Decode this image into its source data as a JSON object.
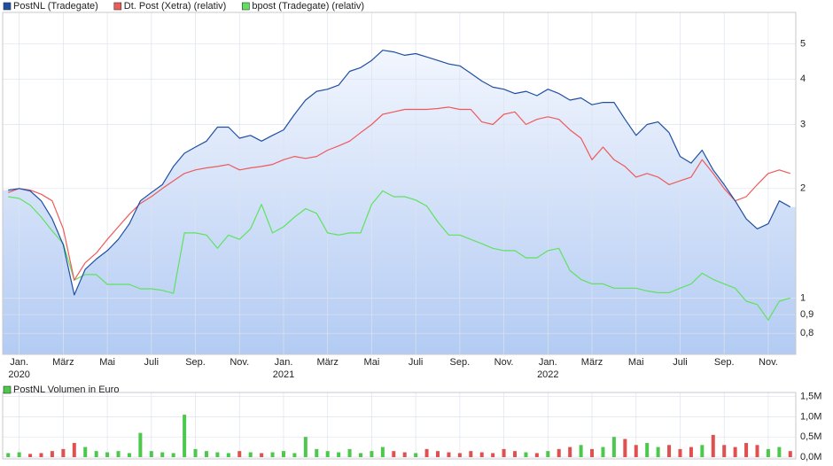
{
  "chart_data": [
    {
      "type": "line",
      "yscale": "log",
      "grid": true,
      "area_under_first_series": true,
      "categories": [
        null,
        "Jan.",
        null,
        null,
        null,
        "März",
        null,
        null,
        null,
        "Mai",
        null,
        null,
        null,
        "Juli",
        null,
        null,
        null,
        "Sep.",
        null,
        null,
        null,
        "Nov.",
        null,
        null,
        null,
        "Jan.",
        null,
        null,
        null,
        "März",
        null,
        null,
        null,
        "Mai",
        null,
        null,
        null,
        "Juli",
        null,
        null,
        null,
        "Sep.",
        null,
        null,
        null,
        "Nov.",
        null,
        null,
        null,
        "Jan.",
        null,
        null,
        null,
        "März",
        null,
        null,
        null,
        "Mai",
        null,
        null,
        null,
        "Juli",
        null,
        null,
        null,
        "Sep.",
        null,
        null,
        null,
        "Nov.",
        null,
        null
      ],
      "category_years": [
        null,
        "2020",
        null,
        null,
        null,
        null,
        null,
        null,
        null,
        null,
        null,
        null,
        null,
        null,
        null,
        null,
        null,
        null,
        null,
        null,
        null,
        null,
        null,
        null,
        null,
        "2021",
        null,
        null,
        null,
        null,
        null,
        null,
        null,
        null,
        null,
        null,
        null,
        null,
        null,
        null,
        null,
        null,
        null,
        null,
        null,
        null,
        null,
        null,
        null,
        "2022",
        null,
        null,
        null,
        null,
        null,
        null,
        null,
        null,
        null,
        null,
        null,
        null,
        null,
        null,
        null,
        null,
        null,
        null,
        null,
        null,
        null,
        null
      ],
      "ylim": [
        0.7,
        6.1
      ],
      "yticks": [
        {
          "value": 0.8,
          "label": "0,8"
        },
        {
          "value": 0.9,
          "label": "0,9"
        },
        1,
        2,
        3,
        4,
        5
      ],
      "series": [
        {
          "name": "PostNL (Tradegate)",
          "color": "#1f4fa3",
          "values": [
            1.98,
            2.0,
            1.97,
            1.85,
            1.65,
            1.4,
            1.02,
            1.2,
            1.28,
            1.35,
            1.45,
            1.6,
            1.85,
            1.95,
            2.05,
            2.3,
            2.5,
            2.6,
            2.7,
            2.95,
            2.95,
            2.75,
            2.8,
            2.7,
            2.8,
            2.9,
            3.2,
            3.5,
            3.7,
            3.75,
            3.85,
            4.2,
            4.3,
            4.5,
            4.8,
            4.75,
            4.65,
            4.7,
            4.6,
            4.5,
            4.4,
            4.35,
            4.15,
            3.95,
            3.8,
            3.75,
            3.65,
            3.7,
            3.6,
            3.75,
            3.65,
            3.5,
            3.55,
            3.4,
            3.45,
            3.45,
            3.1,
            2.8,
            3.0,
            3.05,
            2.85,
            2.45,
            2.35,
            2.55,
            2.25,
            2.05,
            1.85,
            1.65,
            1.55,
            1.6,
            1.85,
            1.78
          ]
        },
        {
          "name": "Dt. Post (Xetra) (relativ)",
          "color": "#ee5a5a",
          "values": [
            1.95,
            2.0,
            1.98,
            1.93,
            1.85,
            1.55,
            1.12,
            1.25,
            1.33,
            1.45,
            1.57,
            1.7,
            1.82,
            1.9,
            2.0,
            2.1,
            2.2,
            2.25,
            2.28,
            2.3,
            2.33,
            2.25,
            2.28,
            2.3,
            2.33,
            2.4,
            2.45,
            2.42,
            2.45,
            2.55,
            2.62,
            2.7,
            2.85,
            3.0,
            3.2,
            3.25,
            3.3,
            3.3,
            3.3,
            3.32,
            3.35,
            3.3,
            3.3,
            3.05,
            3.0,
            3.2,
            3.25,
            3.0,
            3.1,
            3.15,
            3.1,
            2.9,
            2.75,
            2.4,
            2.6,
            2.4,
            2.3,
            2.15,
            2.2,
            2.15,
            2.05,
            2.1,
            2.15,
            2.4,
            2.2,
            2.0,
            1.85,
            1.9,
            2.05,
            2.2,
            2.25,
            2.2
          ]
        },
        {
          "name": "bpost (Tradegate) (relativ)",
          "color": "#5ee25e",
          "values": [
            1.9,
            1.88,
            1.8,
            1.67,
            1.53,
            1.41,
            1.12,
            1.16,
            1.16,
            1.09,
            1.09,
            1.09,
            1.06,
            1.06,
            1.05,
            1.03,
            1.51,
            1.51,
            1.49,
            1.37,
            1.49,
            1.45,
            1.55,
            1.81,
            1.51,
            1.57,
            1.67,
            1.76,
            1.71,
            1.51,
            1.49,
            1.51,
            1.51,
            1.81,
            1.97,
            1.9,
            1.9,
            1.86,
            1.79,
            1.62,
            1.49,
            1.49,
            1.45,
            1.41,
            1.37,
            1.35,
            1.35,
            1.29,
            1.29,
            1.35,
            1.37,
            1.19,
            1.125,
            1.094,
            1.094,
            1.064,
            1.064,
            1.064,
            1.046,
            1.034,
            1.034,
            1.064,
            1.094,
            1.17,
            1.125,
            1.094,
            1.064,
            0.98,
            0.96,
            0.87,
            0.98,
            1.0
          ]
        }
      ]
    },
    {
      "type": "bar",
      "grid": true,
      "ylim": [
        0,
        1.6
      ],
      "yticks": [
        {
          "value": 0,
          "label": "0,0M"
        },
        {
          "value": 0.5,
          "label": "0,5M"
        },
        {
          "value": 1.0,
          "label": "1,0M"
        },
        {
          "value": 1.5,
          "label": "1,5M"
        }
      ],
      "up_color": "#4cc84c",
      "down_color": "#e05050",
      "series": [
        {
          "name": "PostNL Volumen in Euro",
          "color": "#4cc84c",
          "values": [
            0.1,
            0.12,
            0.08,
            0.1,
            0.15,
            0.2,
            0.35,
            0.25,
            0.15,
            0.12,
            0.15,
            0.1,
            0.6,
            0.15,
            0.12,
            0.1,
            1.05,
            0.2,
            0.15,
            0.12,
            0.1,
            0.15,
            0.12,
            0.1,
            0.12,
            0.15,
            0.1,
            0.5,
            0.2,
            0.15,
            0.12,
            0.2,
            0.1,
            0.15,
            0.25,
            0.15,
            0.12,
            0.1,
            0.2,
            0.15,
            0.12,
            0.1,
            0.15,
            0.12,
            0.1,
            0.2,
            0.15,
            0.12,
            0.1,
            0.15,
            0.2,
            0.25,
            0.3,
            0.2,
            0.25,
            0.5,
            0.45,
            0.3,
            0.35,
            0.25,
            0.3,
            0.2,
            0.25,
            0.3,
            0.55,
            0.3,
            0.25,
            0.35,
            0.3,
            0.2,
            0.25,
            0.15
          ]
        }
      ]
    }
  ]
}
